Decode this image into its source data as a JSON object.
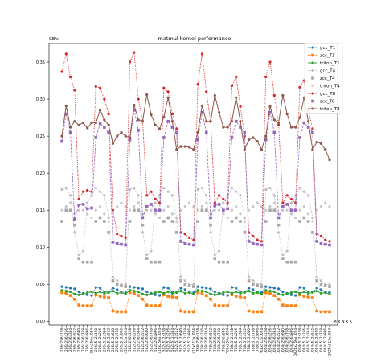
{
  "chart_data": {
    "type": "line",
    "title": "matmul kernel performance",
    "ylabel": "GB/s",
    "xlabel": "M x N x K",
    "ylim": [
      -0.005,
      0.375
    ],
    "yticks": [
      0.0,
      0.05,
      0.1,
      0.15,
      0.2,
      0.25,
      0.3,
      0.35
    ],
    "grid": false,
    "legend_position": "top-right",
    "categories": [
      "256x256x128",
      "256x256x256",
      "256x256x384",
      "256x256x512",
      "256x256x640",
      "256x256x768",
      "256x256x896",
      "256x256x1024",
      "256x512x128",
      "256x512x256",
      "256x512x384",
      "256x512x512",
      "256x512x640",
      "256x512x768",
      "256x512x896",
      "256x512x1024",
      "512x256x128",
      "512x256x256",
      "512x256x384",
      "512x256x512",
      "512x256x640",
      "512x256x768",
      "512x256x896",
      "512x256x1024",
      "512x512x128",
      "512x512x256",
      "512x512x384",
      "512x512x512",
      "512x512x640",
      "512x512x768",
      "512x512x896",
      "512x512x1024",
      "768x256x128",
      "768x256x256",
      "768x256x384",
      "768x256x512",
      "768x256x640",
      "768x256x768",
      "768x256x896",
      "768x256x1024",
      "768x512x128",
      "768x512x256",
      "768x512x384",
      "768x512x512",
      "768x512x640",
      "768x512x768",
      "768x512x896",
      "768x512x1024",
      "1024x256x128",
      "1024x256x256",
      "1024x256x384",
      "1024x256x512",
      "1024x256x640",
      "1024x256x768",
      "1024x256x896",
      "1024x256x1024",
      "1024x512x128",
      "1024x512x256",
      "1024x512x384",
      "1024x512x512",
      "1024x512x640",
      "1024x512x768",
      "1024x512x896",
      "1024x512x1024"
    ],
    "series": [
      {
        "name": "gcc_T1",
        "color": "#1f77b4",
        "marker": "circle",
        "line": "dotted",
        "values": [
          0.047,
          0.046,
          0.045,
          0.044,
          0.04,
          0.038,
          0.036,
          0.035,
          0.046,
          0.045,
          0.04,
          0.04,
          0.045,
          0.043,
          0.04,
          0.039,
          0.047,
          0.046,
          0.045,
          0.044,
          0.04,
          0.038,
          0.036,
          0.035,
          0.046,
          0.045,
          0.04,
          0.04,
          0.045,
          0.043,
          0.04,
          0.039,
          0.047,
          0.046,
          0.045,
          0.044,
          0.04,
          0.038,
          0.036,
          0.035,
          0.046,
          0.045,
          0.04,
          0.04,
          0.045,
          0.043,
          0.04,
          0.039,
          0.047,
          0.046,
          0.045,
          0.044,
          0.04,
          0.038,
          0.036,
          0.035,
          0.046,
          0.045,
          0.04,
          0.04,
          0.045,
          0.043,
          0.04,
          0.039
        ]
      },
      {
        "name": "zcc_T1",
        "color": "#ff7f0e",
        "marker": "square",
        "line": "dotted",
        "values": [
          0.039,
          0.038,
          0.035,
          0.03,
          0.022,
          0.021,
          0.021,
          0.021,
          0.036,
          0.034,
          0.033,
          0.032,
          0.014,
          0.013,
          0.013,
          0.013,
          0.039,
          0.038,
          0.035,
          0.03,
          0.022,
          0.021,
          0.021,
          0.021,
          0.036,
          0.034,
          0.033,
          0.032,
          0.014,
          0.013,
          0.013,
          0.013,
          0.039,
          0.038,
          0.035,
          0.03,
          0.022,
          0.021,
          0.021,
          0.021,
          0.036,
          0.034,
          0.033,
          0.032,
          0.014,
          0.013,
          0.013,
          0.013,
          0.039,
          0.038,
          0.035,
          0.03,
          0.022,
          0.021,
          0.021,
          0.021,
          0.036,
          0.034,
          0.033,
          0.032,
          0.014,
          0.013,
          0.013,
          0.013
        ]
      },
      {
        "name": "triton_T1",
        "color": "#2ca02c",
        "marker": "circle",
        "line": "solid",
        "values": [
          0.042,
          0.041,
          0.04,
          0.037,
          0.036,
          0.037,
          0.039,
          0.04,
          0.038,
          0.04,
          0.038,
          0.039,
          0.041,
          0.038,
          0.039,
          0.037,
          0.042,
          0.041,
          0.04,
          0.037,
          0.036,
          0.037,
          0.039,
          0.04,
          0.038,
          0.04,
          0.038,
          0.039,
          0.041,
          0.038,
          0.039,
          0.037,
          0.042,
          0.041,
          0.04,
          0.037,
          0.036,
          0.037,
          0.039,
          0.04,
          0.038,
          0.04,
          0.038,
          0.039,
          0.041,
          0.038,
          0.039,
          0.037,
          0.042,
          0.041,
          0.04,
          0.037,
          0.036,
          0.037,
          0.039,
          0.04,
          0.038,
          0.04,
          0.038,
          0.039,
          0.041,
          0.038,
          0.039,
          0.037
        ]
      },
      {
        "name": "gcc_T4",
        "color": "#bdbdbd",
        "marker": "circle",
        "line": "dotted",
        "values": [
          0.178,
          0.18,
          0.17,
          0.12,
          0.09,
          0.095,
          0.16,
          0.17,
          0.18,
          0.175,
          0.17,
          0.14,
          0.06,
          0.055,
          0.05,
          0.05,
          0.178,
          0.18,
          0.17,
          0.12,
          0.09,
          0.095,
          0.16,
          0.17,
          0.18,
          0.175,
          0.17,
          0.14,
          0.06,
          0.055,
          0.05,
          0.05,
          0.178,
          0.18,
          0.17,
          0.12,
          0.09,
          0.095,
          0.16,
          0.17,
          0.18,
          0.175,
          0.17,
          0.14,
          0.06,
          0.055,
          0.05,
          0.05,
          0.178,
          0.18,
          0.17,
          0.12,
          0.09,
          0.095,
          0.16,
          0.17,
          0.18,
          0.175,
          0.17,
          0.14,
          0.06,
          0.055,
          0.05,
          0.05
        ]
      },
      {
        "name": "zcc_T4",
        "color": "#a6a6a6",
        "marker": "square",
        "line": "none",
        "values": [
          0.135,
          0.15,
          0.15,
          0.13,
          0.085,
          0.08,
          0.08,
          0.08,
          0.135,
          0.14,
          0.135,
          0.12,
          0.055,
          0.05,
          0.048,
          0.047,
          0.135,
          0.15,
          0.15,
          0.13,
          0.085,
          0.08,
          0.08,
          0.08,
          0.135,
          0.14,
          0.135,
          0.12,
          0.055,
          0.05,
          0.048,
          0.047,
          0.135,
          0.15,
          0.15,
          0.13,
          0.085,
          0.08,
          0.08,
          0.08,
          0.135,
          0.14,
          0.135,
          0.12,
          0.055,
          0.05,
          0.048,
          0.047,
          0.135,
          0.15,
          0.15,
          0.13,
          0.085,
          0.08,
          0.08,
          0.08,
          0.135,
          0.14,
          0.135,
          0.12,
          0.055,
          0.05,
          0.048,
          0.047
        ]
      },
      {
        "name": "triton_T4",
        "color": "#c7c7c7",
        "marker": "circle",
        "line": "none",
        "values": [
          0.15,
          0.155,
          0.16,
          0.145,
          0.15,
          0.15,
          0.145,
          0.14,
          0.15,
          0.155,
          0.145,
          0.135,
          0.15,
          0.155,
          0.16,
          0.155,
          0.15,
          0.155,
          0.16,
          0.145,
          0.15,
          0.15,
          0.145,
          0.14,
          0.15,
          0.155,
          0.145,
          0.135,
          0.15,
          0.155,
          0.16,
          0.155,
          0.15,
          0.155,
          0.16,
          0.145,
          0.15,
          0.15,
          0.145,
          0.14,
          0.15,
          0.155,
          0.145,
          0.135,
          0.15,
          0.155,
          0.16,
          0.155,
          0.15,
          0.155,
          0.16,
          0.145,
          0.15,
          0.15,
          0.145,
          0.14,
          0.15,
          0.155,
          0.145,
          0.135,
          0.15,
          0.155,
          0.16,
          0.155
        ]
      },
      {
        "name": "gcc_T8",
        "color": "#d62728",
        "marker": "circle",
        "line": "dotted",
        "values": [
          0.337,
          0.361,
          0.33,
          0.312,
          0.165,
          0.175,
          0.177,
          0.175,
          0.317,
          0.315,
          0.3,
          0.28,
          0.15,
          0.118,
          0.115,
          0.113,
          0.35,
          0.363,
          0.3,
          0.27,
          0.17,
          0.175,
          0.165,
          0.16,
          0.315,
          0.31,
          0.28,
          0.26,
          0.12,
          0.118,
          0.113,
          0.11,
          0.32,
          0.361,
          0.31,
          0.27,
          0.16,
          0.17,
          0.165,
          0.16,
          0.318,
          0.33,
          0.29,
          0.25,
          0.12,
          0.115,
          0.11,
          0.108,
          0.33,
          0.35,
          0.305,
          0.265,
          0.16,
          0.17,
          0.165,
          0.16,
          0.316,
          0.325,
          0.285,
          0.26,
          0.118,
          0.115,
          0.11,
          0.108
        ]
      },
      {
        "name": "zcc_T8",
        "color": "#9467bd",
        "marker": "square",
        "line": "dashed",
        "values": [
          0.243,
          0.28,
          0.255,
          0.138,
          0.157,
          0.158,
          0.152,
          0.153,
          0.248,
          0.267,
          0.262,
          0.255,
          0.107,
          0.105,
          0.104,
          0.103,
          0.245,
          0.285,
          0.258,
          0.14,
          0.155,
          0.158,
          0.15,
          0.15,
          0.248,
          0.27,
          0.262,
          0.255,
          0.108,
          0.105,
          0.104,
          0.103,
          0.245,
          0.282,
          0.255,
          0.14,
          0.156,
          0.158,
          0.15,
          0.152,
          0.248,
          0.27,
          0.262,
          0.255,
          0.108,
          0.105,
          0.104,
          0.103,
          0.245,
          0.282,
          0.255,
          0.14,
          0.155,
          0.158,
          0.15,
          0.15,
          0.248,
          0.268,
          0.262,
          0.255,
          0.108,
          0.105,
          0.104,
          0.103
        ]
      },
      {
        "name": "triton_T8",
        "color": "#8c564b",
        "marker": "circle",
        "line": "solid",
        "values": [
          0.25,
          0.291,
          0.262,
          0.27,
          0.265,
          0.268,
          0.261,
          0.268,
          0.268,
          0.285,
          0.272,
          0.265,
          0.24,
          0.25,
          0.255,
          0.25,
          0.248,
          0.292,
          0.272,
          0.27,
          0.306,
          0.279,
          0.265,
          0.26,
          0.276,
          0.302,
          0.27,
          0.232,
          0.236,
          0.236,
          0.235,
          0.232,
          0.255,
          0.291,
          0.27,
          0.27,
          0.305,
          0.282,
          0.262,
          0.262,
          0.27,
          0.302,
          0.27,
          0.232,
          0.245,
          0.248,
          0.243,
          0.232,
          0.25,
          0.29,
          0.272,
          0.268,
          0.305,
          0.28,
          0.262,
          0.262,
          0.275,
          0.302,
          0.27,
          0.232,
          0.242,
          0.24,
          0.232,
          0.218
        ]
      }
    ]
  }
}
